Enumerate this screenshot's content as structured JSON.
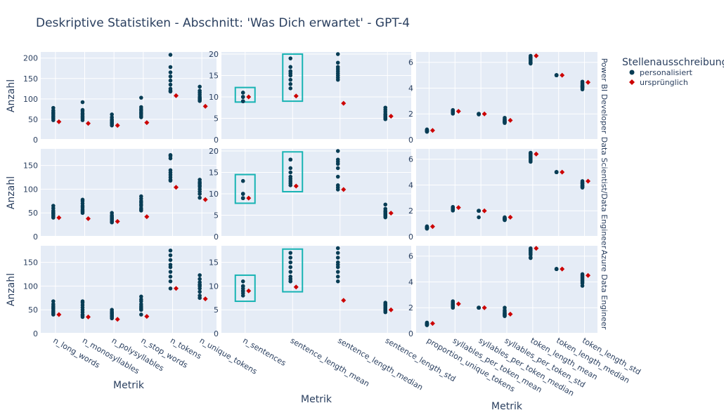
{
  "title": "Deskriptive Statistiken - Abschnitt: 'Was Dich erwartet' - GPT-4",
  "legend": {
    "title": "Stellenausschreibung",
    "items": [
      {
        "label": "personalisiert",
        "color": "#083D55",
        "symbol": "circle"
      },
      {
        "label": "ursprünglich",
        "color": "#CC0000",
        "symbol": "diamond"
      }
    ]
  },
  "rows": [
    "Power BI Developer",
    "Data Scientist/Data Engineer",
    "Azure Data Engineer"
  ],
  "ylabel": "Anzahl",
  "xlabel": "Metrik",
  "colors": {
    "background": "#E5ECF6",
    "grid": "#ffffff",
    "text": "#2a3f5f",
    "highlight": "#17B3B3"
  },
  "chart_data": [
    {
      "type": "scatter",
      "col": 0,
      "categories": [
        "n_long_words",
        "n_monosyllables",
        "n_polysyllables",
        "n_stop_words",
        "n_tokens",
        "n_unique_tokens"
      ],
      "ylims": [
        [
          0,
          215
        ],
        [
          0,
          185
        ],
        [
          0,
          185
        ]
      ],
      "yticks": [
        [
          0,
          50,
          100,
          150,
          200
        ],
        [
          0,
          50,
          100,
          150
        ],
        [
          0,
          50,
          100,
          150
        ]
      ]
    },
    {
      "type": "scatter",
      "col": 1,
      "categories": [
        "n_sentences",
        "sentence_length_mean",
        "sentence_length_median",
        "sentence_length_std"
      ],
      "ylims": [
        [
          0,
          20.5
        ],
        [
          0,
          20.5
        ],
        [
          0,
          18.5
        ]
      ],
      "yticks": [
        [
          0,
          5,
          10,
          15,
          20
        ],
        [
          0,
          5,
          10,
          15,
          20
        ],
        [
          0,
          5,
          10,
          15
        ]
      ]
    },
    {
      "type": "scatter",
      "col": 2,
      "categories": [
        "proportion_unique_tokens",
        "syllables_per_token_mean",
        "syllables_per_token_median",
        "syllables_per_token_std",
        "token_length_mean",
        "token_length_median",
        "token_length_std"
      ],
      "ylims": [
        [
          0,
          6.8
        ],
        [
          0,
          6.8
        ],
        [
          0,
          6.8
        ]
      ],
      "yticks": [
        [
          0,
          2,
          4,
          6
        ],
        [
          0,
          2,
          4,
          6
        ],
        [
          0,
          2,
          4,
          6
        ]
      ]
    }
  ],
  "series": {
    "0_0": {
      "personalisiert": [
        [
          78,
          72,
          68,
          65,
          62,
          58,
          55,
          52,
          48
        ],
        [
          92,
          73,
          70,
          65,
          62,
          58,
          55,
          52,
          48
        ],
        [
          62,
          55,
          50,
          47,
          45,
          42,
          40,
          38,
          35
        ],
        [
          103,
          80,
          75,
          72,
          68,
          65,
          62,
          58,
          55
        ],
        [
          208,
          178,
          165,
          155,
          145,
          135,
          125,
          120,
          118
        ],
        [
          130,
          120,
          115,
          110,
          105,
          102,
          100,
          98,
          95
        ]
      ],
      "ursprünglich": [
        44,
        40,
        35,
        42,
        108,
        82
      ]
    },
    "1_0": {
      "personalisiert": [
        [
          65,
          60,
          55,
          52,
          50,
          48,
          45,
          42,
          40
        ],
        [
          78,
          75,
          70,
          65,
          62,
          58,
          55,
          53,
          50
        ],
        [
          50,
          45,
          42,
          40,
          38,
          36,
          34,
          32,
          30
        ],
        [
          85,
          80,
          75,
          72,
          68,
          65,
          60,
          57,
          55
        ],
        [
          172,
          170,
          165,
          140,
          135,
          130,
          125,
          120,
          118
        ],
        [
          120,
          115,
          112,
          108,
          105,
          100,
          95,
          90,
          82
        ]
      ],
      "ursprünglich": [
        40,
        38,
        32,
        42,
        104,
        78
      ]
    },
    "2_0": {
      "personalisiert": [
        [
          68,
          62,
          58,
          55,
          52,
          48,
          45,
          42,
          40
        ],
        [
          68,
          65,
          60,
          55,
          50,
          45,
          40,
          38,
          35
        ],
        [
          50,
          46,
          44,
          42,
          40,
          38,
          36,
          34,
          32
        ],
        [
          78,
          72,
          68,
          62,
          58,
          55,
          52,
          50,
          40
        ],
        [
          175,
          165,
          155,
          145,
          140,
          130,
          120,
          110,
          95
        ],
        [
          123,
          115,
          108,
          103,
          100,
          95,
          88,
          80,
          75
        ]
      ],
      "ursprünglich": [
        40,
        35,
        30,
        36,
        95,
        73
      ]
    },
    "0_1": {
      "personalisiert": [
        [
          11,
          11,
          10,
          10,
          10,
          10,
          9,
          9,
          9
        ],
        [
          19,
          17,
          16,
          16,
          15.5,
          15,
          14,
          13,
          12
        ],
        [
          20,
          18,
          17,
          16.5,
          16,
          15.5,
          15,
          14.5,
          14
        ],
        [
          7.5,
          7,
          6.5,
          6,
          5.8,
          5.5,
          5.2,
          5,
          4.8
        ]
      ],
      "ursprünglich": [
        10,
        10.2,
        8.5,
        5.5
      ]
    },
    "1_1": {
      "personalisiert": [
        [
          13,
          10,
          10,
          10,
          9,
          9,
          9,
          9,
          9
        ],
        [
          18,
          18,
          16,
          15,
          14,
          13.5,
          13,
          12.5,
          12
        ],
        [
          20,
          18,
          17.5,
          17,
          16,
          14,
          12,
          11.5,
          11
        ],
        [
          7.5,
          6.5,
          6,
          5.8,
          5.5,
          5.2,
          5,
          4.8,
          4.5
        ]
      ],
      "ursprünglich": [
        9,
        11.8,
        11,
        5.5
      ]
    },
    "2_1": {
      "personalisiert": [
        [
          11,
          10,
          10,
          9.5,
          9,
          9,
          9,
          8.5,
          8
        ],
        [
          17,
          16,
          15,
          14,
          13,
          12,
          11.5,
          11,
          11
        ],
        [
          18,
          17,
          16,
          15,
          14.5,
          14,
          13,
          12,
          11
        ],
        [
          6.5,
          6.2,
          6,
          5.8,
          5.5,
          5.2,
          5,
          4.8,
          4.5
        ]
      ],
      "ursprünglich": [
        9,
        9.8,
        7,
        5
      ]
    },
    "0_2": {
      "personalisiert": [
        [
          0.8,
          0.75,
          0.72,
          0.7,
          0.68,
          0.66,
          0.65,
          0.63,
          0.62
        ],
        [
          2.3,
          2.25,
          2.2,
          2.15,
          2.12,
          2.1,
          2.08,
          2.05,
          2.02
        ],
        [
          2,
          2,
          2,
          2,
          2,
          2,
          2,
          1.98,
          1.96
        ],
        [
          1.7,
          1.6,
          1.55,
          1.5,
          1.45,
          1.4,
          1.38,
          1.35,
          1.3
        ],
        [
          6.5,
          6.4,
          6.35,
          6.3,
          6.2,
          6.1,
          6,
          5.95,
          5.9
        ],
        [
          5,
          5,
          5,
          5,
          5,
          5,
          5,
          5,
          5
        ],
        [
          4.5,
          4.4,
          4.3,
          4.2,
          4.15,
          4.1,
          4.05,
          4,
          3.9
        ]
      ],
      "ursprünglich": [
        0.72,
        2.2,
        2,
        1.5,
        6.5,
        5,
        4.45
      ]
    },
    "1_2": {
      "personalisiert": [
        [
          0.8,
          0.75,
          0.72,
          0.7,
          0.68,
          0.66,
          0.65,
          0.63,
          0.62
        ],
        [
          2.3,
          2.25,
          2.2,
          2.15,
          2.12,
          2.1,
          2.08,
          2.05,
          2.02
        ],
        [
          2,
          2,
          2,
          2,
          2,
          2,
          2,
          2,
          1.5
        ],
        [
          1.5,
          1.45,
          1.42,
          1.4,
          1.38,
          1.35,
          1.32,
          1.3,
          1.28
        ],
        [
          6.5,
          6.45,
          6.4,
          6.3,
          6.2,
          6.1,
          6,
          5.9,
          5.8
        ],
        [
          5,
          5,
          5,
          5,
          5,
          5,
          5,
          5,
          5
        ],
        [
          4.3,
          4.2,
          4.15,
          4.1,
          4,
          3.95,
          3.9,
          3.85,
          3.8
        ]
      ],
      "ursprünglich": [
        0.78,
        2.25,
        2,
        1.5,
        6.4,
        5,
        4.3
      ]
    },
    "2_2": {
      "personalisiert": [
        [
          0.85,
          0.8,
          0.78,
          0.75,
          0.72,
          0.7,
          0.68,
          0.66,
          0.65
        ],
        [
          2.5,
          2.4,
          2.3,
          2.25,
          2.2,
          2.15,
          2.1,
          2.05,
          2
        ],
        [
          2,
          2,
          2,
          2,
          2,
          2,
          2,
          2,
          2
        ],
        [
          2,
          1.8,
          1.7,
          1.6,
          1.55,
          1.5,
          1.45,
          1.4,
          1.35
        ],
        [
          6.6,
          6.5,
          6.45,
          6.4,
          6.3,
          6.2,
          6.1,
          5.9,
          5.85
        ],
        [
          5,
          5,
          5,
          5,
          5,
          5,
          5,
          5,
          5
        ],
        [
          4.6,
          4.5,
          4.4,
          4.3,
          4.2,
          4.1,
          4,
          3.9,
          3.7
        ]
      ],
      "ursprünglich": [
        0.78,
        2.3,
        2,
        1.5,
        6.6,
        5,
        4.5
      ]
    }
  },
  "highlights": {
    "0_1": [
      {
        "cat": 0,
        "y0": 8.8,
        "y1": 12.2
      },
      {
        "cat": 1,
        "y0": 9,
        "y1": 20
      }
    ],
    "1_1": [
      {
        "cat": 0,
        "y0": 7.8,
        "y1": 14.5
      },
      {
        "cat": 1,
        "y0": 10.5,
        "y1": 19.8
      }
    ],
    "2_1": [
      {
        "cat": 0,
        "y0": 6.8,
        "y1": 12.3
      },
      {
        "cat": 1,
        "y0": 8.8,
        "y1": 17.8
      }
    ]
  }
}
